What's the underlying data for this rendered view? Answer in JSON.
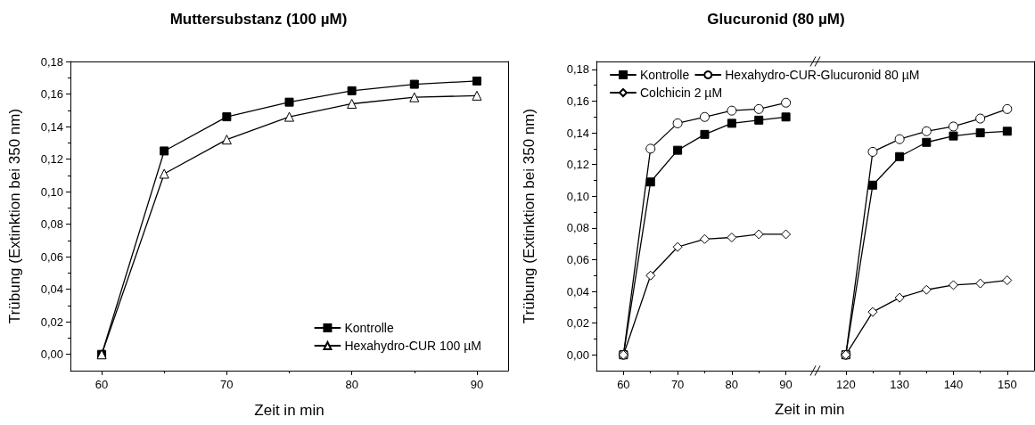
{
  "chart_data": [
    {
      "type": "line",
      "title": "Muttersubstanz (100 µM)",
      "xlabel": "Zeit in min",
      "ylabel": "Trübung (Extinktion bei 350 nm)",
      "xlim": [
        57.5,
        92.5
      ],
      "xticks": [
        60,
        70,
        80,
        90
      ],
      "ylim": [
        -0.01,
        0.18
      ],
      "yticks": [
        {
          "value": 0,
          "label": "0,00"
        },
        {
          "value": 0.02,
          "label": "0,02"
        },
        {
          "value": 0.04,
          "label": "0,04"
        },
        {
          "value": 0.06,
          "label": "0,06"
        },
        {
          "value": 0.08,
          "label": "0,08"
        },
        {
          "value": 0.1,
          "label": "0,10"
        },
        {
          "value": 0.12,
          "label": "0,12"
        },
        {
          "value": 0.14,
          "label": "0,14"
        },
        {
          "value": 0.16,
          "label": "0,16"
        },
        {
          "value": 0.18,
          "label": "0,18"
        }
      ],
      "grid": false,
      "legend": "bottom right",
      "line_style": "solid",
      "x": [
        60,
        65,
        70,
        75,
        80,
        85,
        90
      ],
      "series": [
        {
          "name": "Kontrolle",
          "color": "#000000",
          "marker": "square",
          "values": [
            0,
            0.125,
            0.146,
            0.155,
            0.162,
            0.166,
            0.168
          ]
        },
        {
          "name": "Hexahydro-CUR 100 µM",
          "color": "#000000",
          "marker": "triangle",
          "values": [
            0,
            0.111,
            0.132,
            0.146,
            0.154,
            0.158,
            0.159
          ]
        }
      ]
    },
    {
      "type": "line",
      "title": "Glucuronid (80 µM)",
      "xlabel": "Zeit in min",
      "ylabel": "Trübung (Extinktion bei 350 nm)",
      "xlim": [
        55,
        95.5
      ],
      "xticks": [
        60,
        70,
        80,
        90
      ],
      "ylim": [
        -0.01,
        0.185
      ],
      "yticks": [
        {
          "value": 0,
          "label": "0,00"
        },
        {
          "value": 0.02,
          "label": "0,02"
        },
        {
          "value": 0.04,
          "label": "0,04"
        },
        {
          "value": 0.06,
          "label": "0,06"
        },
        {
          "value": 0.08,
          "label": "0,08"
        },
        {
          "value": 0.1,
          "label": "0,10"
        },
        {
          "value": 0.12,
          "label": "0,12"
        },
        {
          "value": 0.14,
          "label": "0,14"
        },
        {
          "value": 0.16,
          "label": "0,16"
        },
        {
          "value": 0.18,
          "label": "0,18"
        }
      ],
      "grid": false,
      "legend": "top",
      "line_style": "solid",
      "x": [
        60,
        65,
        70,
        75,
        80,
        85,
        90
      ],
      "series": [
        {
          "name": "Kontrolle",
          "color": "#000000",
          "marker": "square",
          "values": [
            0,
            0.109,
            0.129,
            0.139,
            0.146,
            0.148,
            0.15
          ]
        },
        {
          "name": "Hexahydro-CUR-Glucuronid 80 µM",
          "color": "#000000",
          "marker": "circle",
          "values": [
            0,
            0.13,
            0.146,
            0.15,
            0.154,
            0.155,
            0.159
          ]
        },
        {
          "name": "Colchicin 2 µM",
          "color": "#000000",
          "marker": "diamond",
          "values": [
            0,
            0.05,
            0.068,
            0.073,
            0.074,
            0.076,
            0.076
          ]
        }
      ]
    },
    {
      "type": "line",
      "xlim": [
        114.4,
        155
      ],
      "xticks": [
        120,
        130,
        140,
        150
      ],
      "ylim": [
        -0.01,
        0.185
      ],
      "tick_labels": "x",
      "line_style": "solid",
      "x": [
        120,
        125,
        130,
        135,
        140,
        145,
        150
      ],
      "series": [
        {
          "color": "#000000",
          "marker": "square",
          "values": [
            0,
            0.107,
            0.125,
            0.134,
            0.138,
            0.14,
            0.141
          ]
        },
        {
          "color": "#000000",
          "marker": "circle",
          "values": [
            0,
            0.128,
            0.136,
            0.141,
            0.144,
            0.149,
            0.155
          ]
        },
        {
          "color": "#000000",
          "marker": "diamond",
          "values": [
            0,
            0.027,
            0.036,
            0.041,
            0.044,
            0.045,
            0.047
          ]
        }
      ]
    }
  ]
}
